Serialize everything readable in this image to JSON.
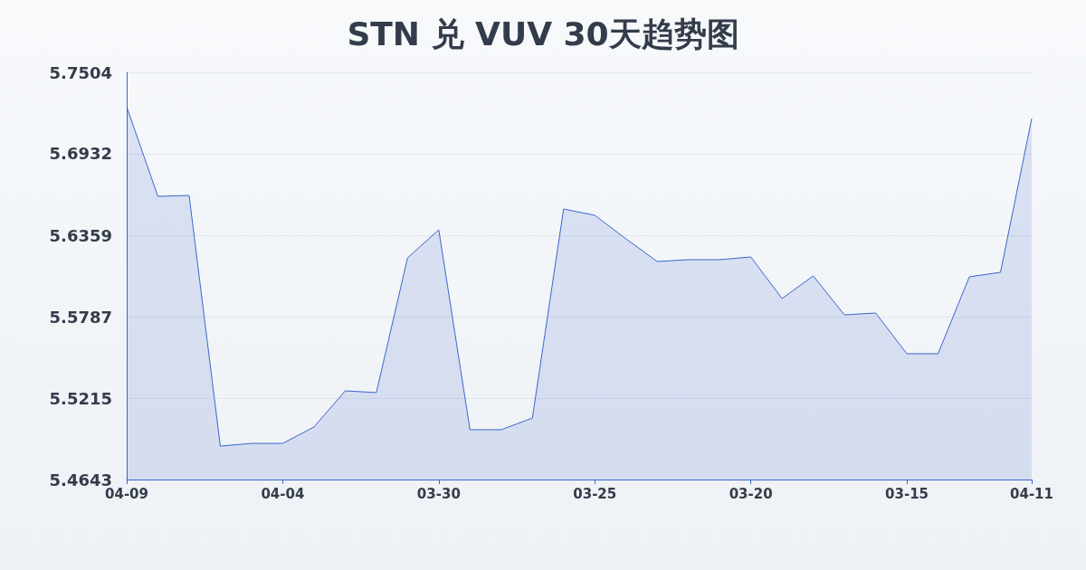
{
  "chart_data": {
    "type": "area",
    "title": "STN 兑 VUV 30天趋势图",
    "categories": [
      "04-09",
      null,
      null,
      null,
      null,
      "04-04",
      null,
      null,
      null,
      null,
      "03-30",
      null,
      null,
      null,
      null,
      "03-25",
      null,
      null,
      null,
      null,
      "03-20",
      null,
      null,
      null,
      null,
      "03-15",
      null,
      null,
      null,
      "04-11"
    ],
    "series": [
      {
        "color": "#3b66cc",
        "values": [
          5.7262,
          5.6633,
          5.6639,
          5.4878,
          5.4897,
          5.4897,
          5.5012,
          5.5266,
          5.5254,
          5.6201,
          5.6398,
          5.4993,
          5.4993,
          5.5075,
          5.6544,
          5.65,
          5.6334,
          5.6175,
          5.6188,
          5.6188,
          5.6207,
          5.5915,
          5.6074,
          5.58,
          5.5813,
          5.5527,
          5.5527,
          5.6067,
          5.6099,
          5.718
        ]
      }
    ],
    "ylim": [
      5.4643,
      5.7504
    ],
    "yticks": [
      5.4643,
      5.5215,
      5.5787,
      5.6359,
      5.6932,
      5.7504
    ],
    "grid": "y",
    "marker": "none",
    "line_style": "solid"
  }
}
